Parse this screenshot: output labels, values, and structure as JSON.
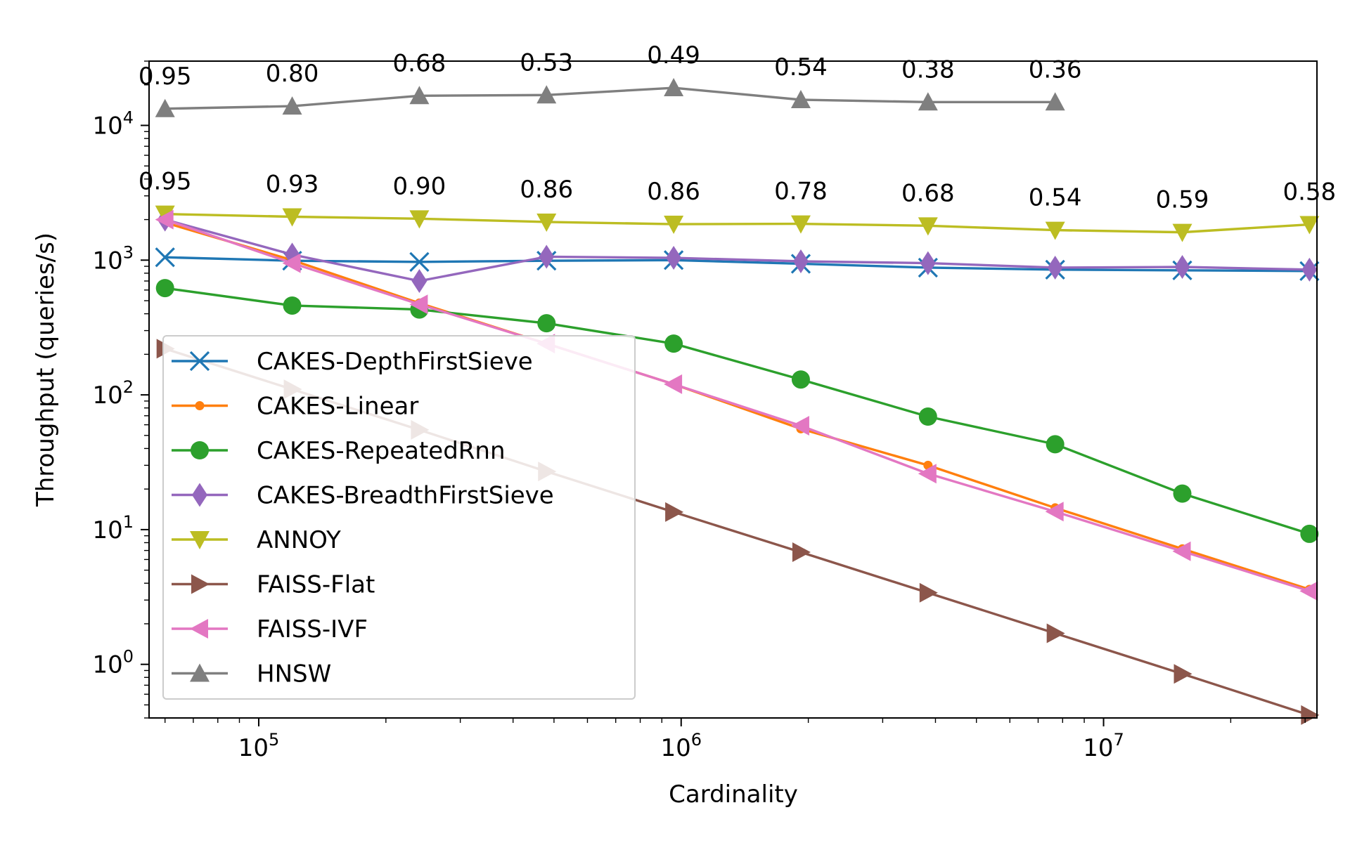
{
  "chart_data": {
    "type": "line",
    "title": "",
    "xlabel": "Cardinality",
    "ylabel": "Throughput (queries/s)",
    "xscale": "log",
    "yscale": "log",
    "xlim": [
      55000,
      32000000
    ],
    "ylim": [
      0.4,
      30000
    ],
    "x_ticks": [
      {
        "value": 100000,
        "base": "10",
        "exp": "5"
      },
      {
        "value": 1000000,
        "base": "10",
        "exp": "6"
      },
      {
        "value": 10000000,
        "base": "10",
        "exp": "7"
      }
    ],
    "y_ticks": [
      {
        "value": 1,
        "base": "10",
        "exp": "0"
      },
      {
        "value": 10,
        "base": "10",
        "exp": "1"
      },
      {
        "value": 100,
        "base": "10",
        "exp": "2"
      },
      {
        "value": 1000,
        "base": "10",
        "exp": "3"
      },
      {
        "value": 10000,
        "base": "10",
        "exp": "4"
      }
    ],
    "x": [
      60000,
      120000,
      240000,
      480000,
      960000,
      1920000,
      3840000,
      7680000,
      15360000,
      30720000
    ],
    "legend_position": "lower-left",
    "series": [
      {
        "name": "CAKES-DepthFirstSieve",
        "color": "#1f77b4",
        "marker": "x",
        "values": [
          1050,
          990,
          970,
          990,
          1000,
          940,
          880,
          850,
          840,
          830
        ]
      },
      {
        "name": "CAKES-Linear",
        "color": "#ff7f0e",
        "marker": "dot",
        "values": [
          1900,
          1000,
          480,
          240,
          120,
          56,
          30,
          14.5,
          7.2,
          3.6
        ]
      },
      {
        "name": "CAKES-RepeatedRnn",
        "color": "#2ca02c",
        "marker": "circle",
        "values": [
          620,
          460,
          430,
          340,
          240,
          130,
          69,
          43,
          18.5,
          9.3
        ]
      },
      {
        "name": "CAKES-BreadthFirstSieve",
        "color": "#9467bd",
        "marker": "diamond",
        "values": [
          2000,
          1100,
          700,
          1060,
          1040,
          980,
          950,
          880,
          890,
          850
        ]
      },
      {
        "name": "ANNOY",
        "color": "#bcbd22",
        "marker": "triangle-down",
        "values": [
          2200,
          2100,
          2030,
          1920,
          1850,
          1860,
          1800,
          1670,
          1610,
          1840
        ]
      },
      {
        "name": "FAISS-Flat",
        "color": "#8c564b",
        "marker": "triangle-right",
        "values": [
          220,
          110,
          55,
          27,
          13.5,
          6.8,
          3.4,
          1.7,
          0.85,
          0.42
        ]
      },
      {
        "name": "FAISS-IVF",
        "color": "#e377c2",
        "marker": "triangle-left",
        "values": [
          2000,
          950,
          470,
          240,
          120,
          59,
          26,
          13.6,
          6.9,
          3.5
        ]
      },
      {
        "name": "HNSW",
        "color": "#7f7f7f",
        "marker": "triangle-up",
        "values": [
          13300,
          13900,
          16600,
          16800,
          19000,
          15500,
          14900,
          14900,
          null,
          null
        ]
      }
    ],
    "annotations": [
      {
        "series": "HNSW",
        "labels": [
          "0.95",
          "0.80",
          "0.68",
          "0.53",
          "0.49",
          "0.54",
          "0.38",
          "0.36"
        ]
      },
      {
        "series": "ANNOY",
        "labels": [
          "0.95",
          "0.93",
          "0.90",
          "0.86",
          "0.86",
          "0.78",
          "0.68",
          "0.54",
          "0.59",
          "0.58"
        ]
      }
    ]
  }
}
